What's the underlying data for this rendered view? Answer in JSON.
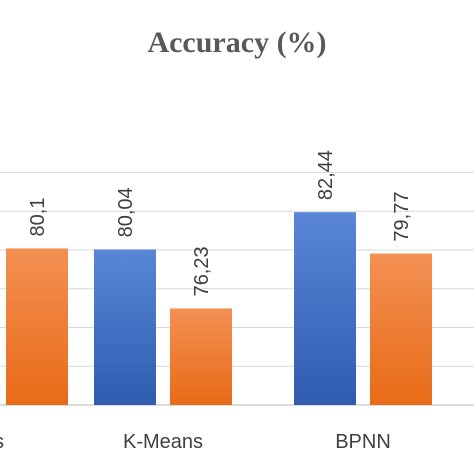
{
  "chart_data": {
    "type": "bar",
    "title": "Accuracy (%)",
    "categories": [
      "s",
      "K-Means",
      "BPNN"
    ],
    "series": [
      {
        "values": [
          null,
          80.04,
          82.44
        ],
        "labels": [
          "",
          "80,04",
          "82,44"
        ],
        "color": "#4472C4"
      },
      {
        "values": [
          80.1,
          76.23,
          79.77
        ],
        "labels": [
          "80,1",
          "76,23",
          "79,77"
        ],
        "color": "#ED7D31"
      }
    ],
    "ylim": [
      70,
      85
    ],
    "grid": true,
    "legend": "none"
  }
}
